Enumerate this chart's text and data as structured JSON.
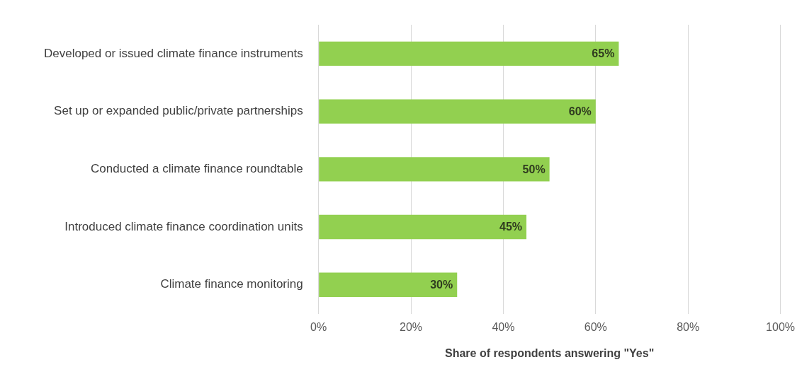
{
  "chart_data": {
    "type": "bar",
    "orientation": "horizontal",
    "xlabel": "Share of respondents answering \"Yes\"",
    "categories": [
      "Developed or issued climate finance instruments",
      "Set up or expanded public/private partnerships",
      "Conducted a climate finance roundtable",
      "Introduced climate finance coordination units",
      "Climate finance monitoring"
    ],
    "values": [
      65,
      60,
      50,
      45,
      30
    ],
    "value_labels": [
      "65%",
      "60%",
      "50%",
      "45%",
      "30%"
    ],
    "color": "#92d050",
    "xlim": [
      0,
      100
    ],
    "xticks": [
      {
        "value": 0,
        "label": "0%"
      },
      {
        "value": 20,
        "label": "20%"
      },
      {
        "value": 40,
        "label": "40%"
      },
      {
        "value": 60,
        "label": "60%"
      },
      {
        "value": 80,
        "label": "80%"
      },
      {
        "value": 100,
        "label": "100%"
      }
    ],
    "grid": "x",
    "legend": false
  }
}
